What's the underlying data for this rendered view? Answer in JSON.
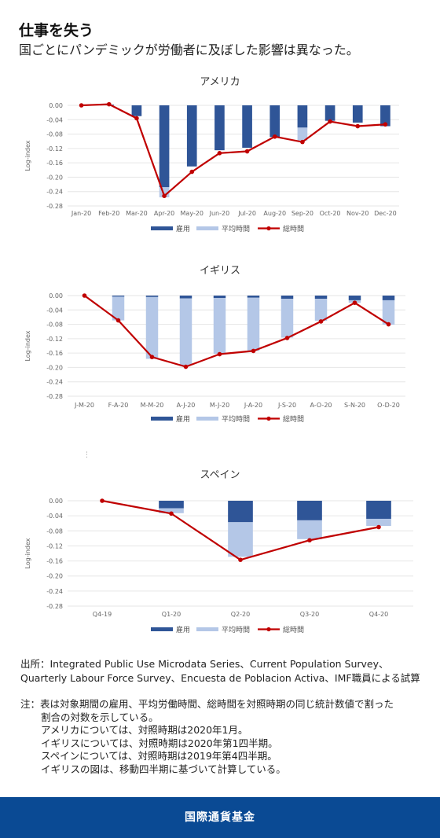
{
  "header": {
    "title": "仕事を失う",
    "subtitle": "国ごとにパンデミックが労働者に及ぼした影響は異なった。"
  },
  "colors": {
    "employment": "#2f5597",
    "avg_hours": "#b4c7e7",
    "total_hours": "#c00000"
  },
  "chart_data": [
    {
      "type": "bar",
      "title": "アメリカ",
      "ylabel": "Log-index",
      "ylim": [
        -0.28,
        0.0
      ],
      "yticks": [
        "0.00",
        "-0.04",
        "-0.08",
        "-0.12",
        "-0.16",
        "-0.20",
        "-0.24",
        "-0.28"
      ],
      "categories": [
        "Jan-20",
        "Feb-20",
        "Mar-20",
        "Apr-20",
        "May-20",
        "Jun-20",
        "Jul-20",
        "Aug-20",
        "Sep-20",
        "Oct-20",
        "Nov-20",
        "Dec-20"
      ],
      "series": [
        {
          "name": "雇用",
          "kind": "bar",
          "values": [
            0.0,
            0.002,
            -0.03,
            -0.228,
            -0.17,
            -0.125,
            -0.118,
            -0.088,
            -0.062,
            -0.043,
            -0.048,
            -0.058
          ]
        },
        {
          "name": "平均時間",
          "kind": "bar",
          "values": [
            0.0,
            0.0,
            0.0,
            -0.028,
            0.0,
            0.0,
            0.0,
            0.0,
            -0.036,
            0.0,
            0.0,
            0.0
          ]
        },
        {
          "name": "総時間",
          "kind": "line",
          "values": [
            0.0,
            0.003,
            -0.036,
            -0.252,
            -0.185,
            -0.133,
            -0.128,
            -0.087,
            -0.102,
            -0.045,
            -0.058,
            -0.053
          ]
        }
      ],
      "legend": "bottom"
    },
    {
      "type": "bar",
      "title": "イギリス",
      "ylabel": "Log-index",
      "ylim": [
        -0.28,
        0.0
      ],
      "yticks": [
        "0.00",
        "-0.04",
        "-0.08",
        "-0.12",
        "-0.16",
        "-0.20",
        "-0.24",
        "-0.28"
      ],
      "categories": [
        "J-M-20",
        "F-A-20",
        "M-M-20",
        "A-J-20",
        "M-J-20",
        "J-A-20",
        "J-S-20",
        "A-O-20",
        "S-N-20",
        "O-D-20"
      ],
      "series": [
        {
          "name": "雇用",
          "kind": "bar",
          "values": [
            0.0,
            -0.003,
            -0.004,
            -0.008,
            -0.007,
            -0.006,
            -0.009,
            -0.009,
            -0.013,
            -0.013
          ]
        },
        {
          "name": "平均時間",
          "kind": "bar",
          "values": [
            0.0,
            -0.066,
            -0.172,
            -0.186,
            -0.155,
            -0.148,
            -0.108,
            -0.061,
            -0.007,
            -0.068
          ]
        },
        {
          "name": "総時間",
          "kind": "line",
          "values": [
            0.0,
            -0.069,
            -0.171,
            -0.198,
            -0.163,
            -0.154,
            -0.118,
            -0.072,
            -0.02,
            -0.08
          ]
        }
      ],
      "legend": "bottom"
    },
    {
      "type": "bar",
      "title": "スペイン",
      "ylabel": "Log-index",
      "ylim": [
        -0.28,
        0.0
      ],
      "yticks": [
        "0.00",
        "-0.04",
        "-0.08",
        "-0.12",
        "-0.16",
        "-0.20",
        "-0.24",
        "-0.28"
      ],
      "categories": [
        "Q4-19",
        "Q1-20",
        "Q2-20",
        "Q3-20",
        "Q4-20"
      ],
      "series": [
        {
          "name": "雇用",
          "kind": "bar",
          "values": [
            0.0,
            -0.02,
            -0.057,
            -0.052,
            -0.048
          ]
        },
        {
          "name": "平均時間",
          "kind": "bar",
          "values": [
            0.0,
            -0.013,
            -0.092,
            -0.05,
            -0.019
          ]
        },
        {
          "name": "総時間",
          "kind": "line",
          "values": [
            0.0,
            -0.034,
            -0.157,
            -0.105,
            -0.07
          ]
        }
      ],
      "legend": "bottom"
    }
  ],
  "source": "出所：Integrated Public Use Microdata Series、Current Population Survey、Quarterly Labour Force Survey、Encuesta de Poblacion Activa、IMF職員による試算",
  "notes": {
    "lead": "注：表は対象期間の雇用、平均労働時間、総時間を対照時期の同じ統計数値で割った",
    "cont": "割合の対数を示している。",
    "lines": [
      "アメリカについては、対照時期は2020年1月。",
      "イギリスについては、対照時期は2020年第1四半期。",
      "スペインについては、対照時期は2019年第4四半期。",
      "イギリスの図は、移動四半期に基づいて計算している。"
    ]
  },
  "footer": "国際通貨基金"
}
